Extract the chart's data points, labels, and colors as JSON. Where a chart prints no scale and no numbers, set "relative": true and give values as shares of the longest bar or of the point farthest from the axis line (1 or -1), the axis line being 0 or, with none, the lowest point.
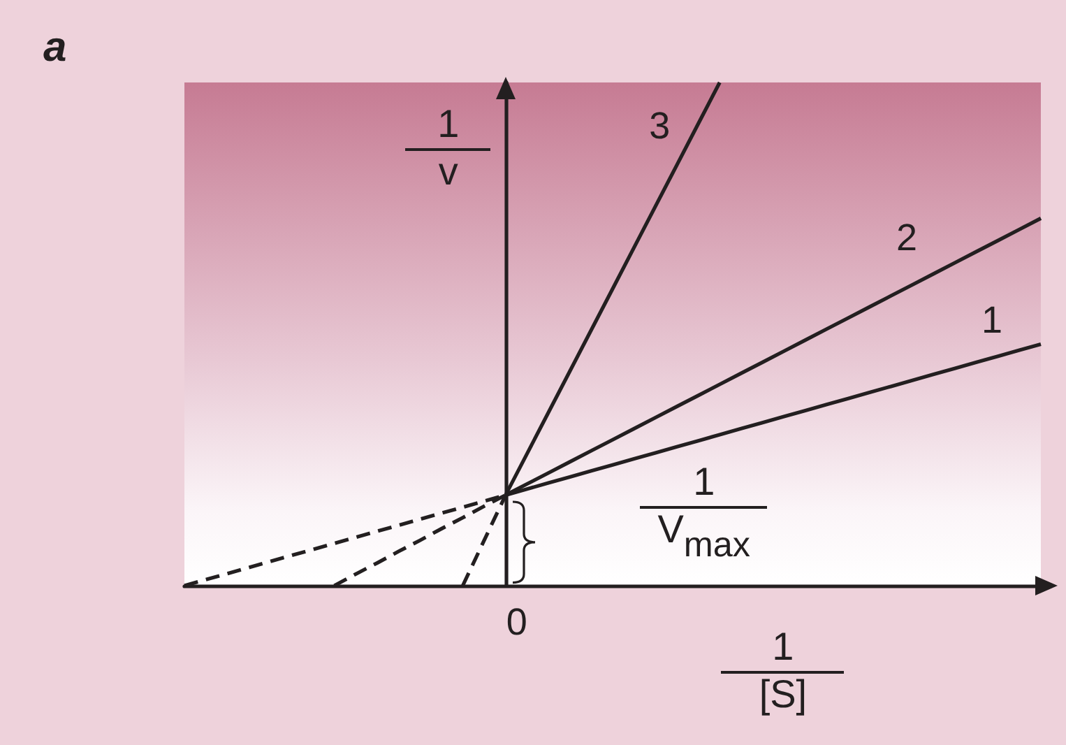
{
  "chart_data": {
    "type": "line",
    "title": "a",
    "xlabel": "1\n[S]",
    "ylabel": "1\nv",
    "relative": true,
    "legend": false,
    "marker": "none",
    "line_style": "solid",
    "categories": [
      null,
      null,
      null,
      null,
      null,
      null,
      null,
      null,
      null,
      null,
      null,
      null,
      null,
      null,
      null,
      null,
      null,
      null,
      null,
      null,
      null,
      null,
      null,
      null,
      null,
      null,
      null,
      null,
      null,
      null,
      null,
      null,
      null,
      null,
      null,
      null,
      null,
      null,
      null,
      null,
      null
    ],
    "annotations": [
      "1\nV$_{max}$",
      "0"
    ],
    "series": [
      {
        "name": "1",
        "color": "#231f20",
        "values": [
          null,
          null,
          null,
          null,
          null,
          null,
          null,
          null,
          null,
          null,
          null,
          null,
          null,
          null,
          null,
          0.18,
          0.192,
          0.204,
          0.216,
          0.228,
          0.24,
          0.252,
          0.264,
          0.276,
          0.288,
          0.3,
          0.312,
          0.324,
          0.336,
          0.348,
          0.36,
          0.372,
          0.384,
          0.396,
          0.408,
          0.42,
          0.432,
          0.444,
          0.456,
          0.468,
          0.48
        ]
      },
      {
        "name": "2",
        "color": "#231f20",
        "values": [
          null,
          null,
          null,
          null,
          null,
          null,
          null,
          null,
          null,
          null,
          null,
          null,
          null,
          null,
          null,
          0.18,
          0.202,
          0.224,
          0.246,
          0.268,
          0.29,
          0.312,
          0.334,
          0.356,
          0.378,
          0.4,
          0.422,
          0.444,
          0.466,
          0.488,
          0.51,
          0.532,
          0.554,
          0.576,
          0.598,
          0.62,
          0.642,
          0.664,
          0.686,
          0.708,
          0.73
        ]
      },
      {
        "name": "3",
        "color": "#231f20",
        "values": [
          null,
          null,
          null,
          null,
          null,
          null,
          null,
          null,
          null,
          null,
          null,
          null,
          null,
          null,
          null,
          0.18,
          0.262,
          0.344,
          0.426,
          0.508,
          0.59,
          0.672,
          0.754,
          0.836,
          0.918,
          1,
          null,
          null,
          null,
          null,
          null,
          null,
          null,
          null,
          null,
          null,
          null,
          null,
          null,
          null,
          null
        ]
      },
      {
        "color": "#231f20",
        "line_style": "dashed",
        "values": [
          0,
          0.012,
          0.024,
          0.036,
          0.048,
          0.06,
          0.072,
          0.084,
          0.096,
          0.108,
          0.12,
          0.132,
          0.144,
          0.156,
          0.168,
          0.18,
          null,
          null,
          null,
          null,
          null,
          null,
          null,
          null,
          null,
          null,
          null,
          null,
          null,
          null,
          null,
          null,
          null,
          null,
          null,
          null,
          null,
          null,
          null,
          null,
          null
        ]
      },
      {
        "color": "#231f20",
        "line_style": "dashed",
        "values": [
          null,
          null,
          null,
          null,
          null,
          null,
          null,
          0,
          0.023,
          0.045,
          0.068,
          0.09,
          0.113,
          0.135,
          0.158,
          0.18,
          null,
          null,
          null,
          null,
          null,
          null,
          null,
          null,
          null,
          null,
          null,
          null,
          null,
          null,
          null,
          null,
          null,
          null,
          null,
          null,
          null,
          null,
          null,
          null,
          null
        ]
      },
      {
        "color": "#231f20",
        "line_style": "dashed",
        "values": [
          null,
          null,
          null,
          null,
          null,
          null,
          null,
          null,
          null,
          null,
          null,
          null,
          null,
          0,
          0.09,
          0.18,
          null,
          null,
          null,
          null,
          null,
          null,
          null,
          null,
          null,
          null,
          null,
          null,
          null,
          null,
          null,
          null,
          null,
          null,
          null,
          null,
          null,
          null,
          null,
          null,
          null
        ]
      }
    ]
  }
}
